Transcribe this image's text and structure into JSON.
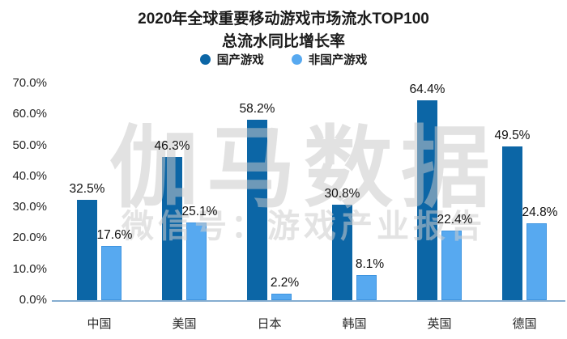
{
  "title": {
    "line1": "2020年全球重要移动游戏市场流水TOP100",
    "line2": "总流水同比增长率"
  },
  "legend": [
    {
      "label": "国产游戏",
      "color": "#0c66a6"
    },
    {
      "label": "非国产游戏",
      "color": "#57a9f0"
    }
  ],
  "watermark": {
    "main": "伽马数据",
    "sub": "微信号：游戏产业报告"
  },
  "chart_data": {
    "type": "bar",
    "title": "2020年全球重要移动游戏市场流水TOP100 总流水同比增长率",
    "categories": [
      "中国",
      "美国",
      "日本",
      "韩国",
      "英国",
      "德国"
    ],
    "series": [
      {
        "name": "国产游戏",
        "color": "#0c66a6",
        "values": [
          32.5,
          46.3,
          58.2,
          30.8,
          64.4,
          49.5
        ]
      },
      {
        "name": "非国产游戏",
        "color": "#57a9f0",
        "values": [
          17.6,
          25.1,
          2.2,
          8.1,
          22.4,
          24.8
        ]
      }
    ],
    "value_suffix": "%",
    "data_labels": [
      [
        "32.5%",
        "46.3%",
        "58.2%",
        "30.8%",
        "64.4%",
        "49.5%"
      ],
      [
        "17.6%",
        "25.1%",
        "2.2%",
        "8.1%",
        "22.4%",
        "24.8%"
      ]
    ],
    "xlabel": "",
    "ylabel": "",
    "ylim": [
      0,
      70
    ],
    "ytick_step": 10,
    "ytick_labels": [
      "0.0%",
      "10.0%",
      "20.0%",
      "30.0%",
      "40.0%",
      "50.0%",
      "60.0%",
      "70.0%"
    ],
    "grid": false,
    "legend_position": "top-center"
  },
  "colors": {
    "axis_line": "#85add0",
    "label_text": "#111111",
    "watermark": "#c9c9c9"
  }
}
